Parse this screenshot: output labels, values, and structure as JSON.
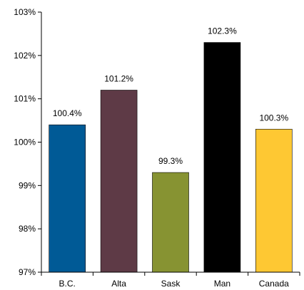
{
  "chart_data": {
    "type": "bar",
    "title": "",
    "xlabel": "",
    "ylabel": "",
    "categories": [
      "B.C.",
      "Alta",
      "Sask",
      "Man",
      "Canada"
    ],
    "values": [
      100.4,
      101.2,
      99.3,
      102.3,
      100.3
    ],
    "value_labels": [
      "100.4%",
      "101.2%",
      "99.3%",
      "102.3%",
      "100.3%"
    ],
    "colors": [
      "#005a96",
      "#5e3a46",
      "#879332",
      "#000000",
      "#fec833"
    ],
    "ylim": [
      97,
      103
    ],
    "yticks": [
      97,
      98,
      99,
      100,
      101,
      102,
      103
    ],
    "ytick_labels": [
      "97%",
      "98%",
      "99%",
      "100%",
      "101%",
      "102%",
      "103%"
    ],
    "grid": false,
    "legend": false
  }
}
